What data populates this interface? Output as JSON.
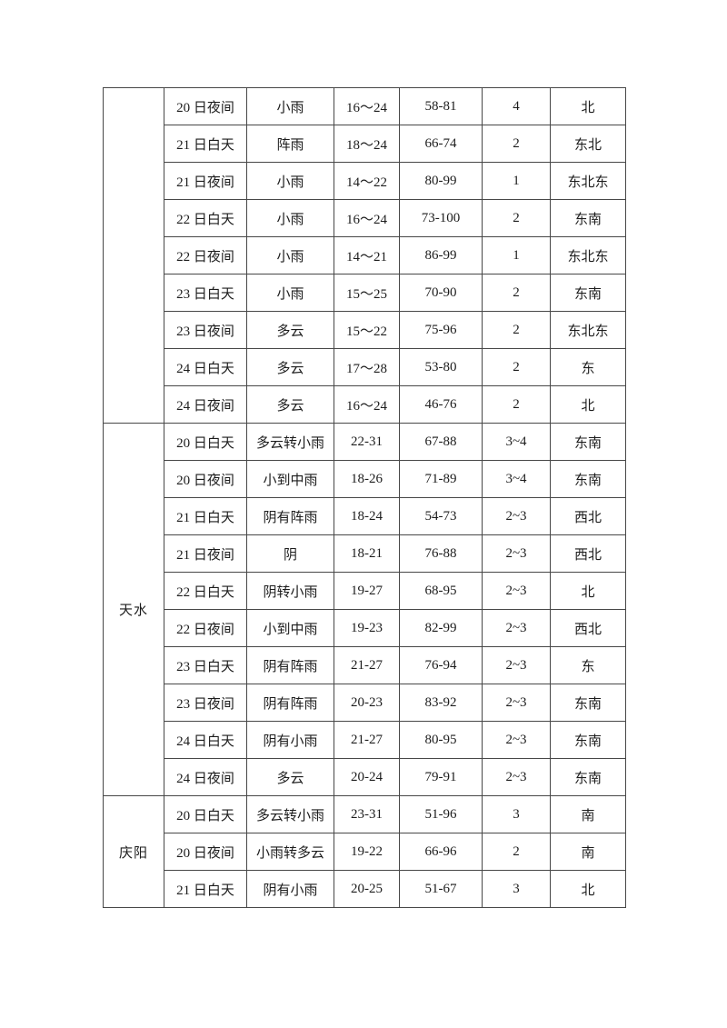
{
  "colors": {
    "page_background": "#ffffff",
    "table_border": "#474747",
    "text": "#1c1c1c"
  },
  "table": {
    "sections": [
      {
        "city": "",
        "rows": [
          [
            "20 日夜间",
            "小雨",
            "16～24",
            "58-81",
            "4",
            "北"
          ],
          [
            "21 日白天",
            "阵雨",
            "18～24",
            "66-74",
            "2",
            "东北"
          ],
          [
            "21 日夜间",
            "小雨",
            "14～22",
            "80-99",
            "1",
            "东北东"
          ],
          [
            "22 日白天",
            "小雨",
            "16～24",
            "73-100",
            "2",
            "东南"
          ],
          [
            "22 日夜间",
            "小雨",
            "14～21",
            "86-99",
            "1",
            "东北东"
          ],
          [
            "23 日白天",
            "小雨",
            "15～25",
            "70-90",
            "2",
            "东南"
          ],
          [
            "23 日夜间",
            "多云",
            "15～22",
            "75-96",
            "2",
            "东北东"
          ],
          [
            "24 日白天",
            "多云",
            "17～28",
            "53-80",
            "2",
            "东"
          ],
          [
            "24 日夜间",
            "多云",
            "16～24",
            "46-76",
            "2",
            "北"
          ]
        ]
      },
      {
        "city": "天水",
        "rows": [
          [
            "20 日白天",
            "多云转小雨",
            "22-31",
            "67-88",
            "3~4",
            "东南"
          ],
          [
            "20 日夜间",
            "小到中雨",
            "18-26",
            "71-89",
            "3~4",
            "东南"
          ],
          [
            "21 日白天",
            "阴有阵雨",
            "18-24",
            "54-73",
            "2~3",
            "西北"
          ],
          [
            "21 日夜间",
            "阴",
            "18-21",
            "76-88",
            "2~3",
            "西北"
          ],
          [
            "22 日白天",
            "阴转小雨",
            "19-27",
            "68-95",
            "2~3",
            "北"
          ],
          [
            "22 日夜间",
            "小到中雨",
            "19-23",
            "82-99",
            "2~3",
            "西北"
          ],
          [
            "23 日白天",
            "阴有阵雨",
            "21-27",
            "76-94",
            "2~3",
            "东"
          ],
          [
            "23 日夜间",
            "阴有阵雨",
            "20-23",
            "83-92",
            "2~3",
            "东南"
          ],
          [
            "24 日白天",
            "阴有小雨",
            "21-27",
            "80-95",
            "2~3",
            "东南"
          ],
          [
            "24 日夜间",
            "多云",
            "20-24",
            "79-91",
            "2~3",
            "东南"
          ]
        ]
      },
      {
        "city": "庆阳",
        "rows": [
          [
            "20 日白天",
            "多云转小雨",
            "23-31",
            "51-96",
            "3",
            "南"
          ],
          [
            "20 日夜间",
            "小雨转多云",
            "19-22",
            "66-96",
            "2",
            "南"
          ],
          [
            "21 日白天",
            "阴有小雨",
            "20-25",
            "51-67",
            "3",
            "北"
          ]
        ]
      }
    ]
  }
}
